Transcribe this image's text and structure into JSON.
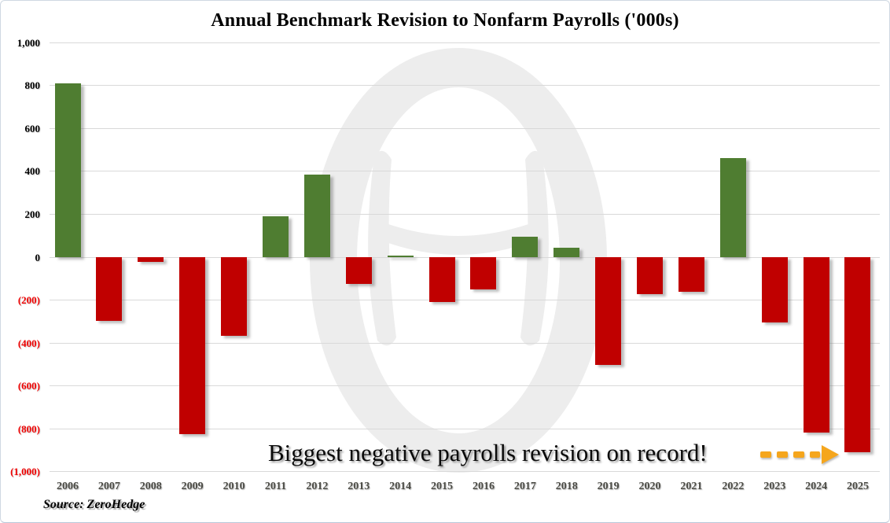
{
  "source": {
    "label": "Source: ZeroHedge"
  },
  "annotation": {
    "text": "Biggest negative payrolls revision on record!"
  },
  "colors": {
    "positive_bar": "#4f7d31",
    "negative_bar": "#c00000",
    "gridline": "#d9d9d9",
    "ytick_positive": "#000000",
    "ytick_negative": "#ef0000",
    "year_label": "#4c4c46",
    "arrow": "#f5a61d",
    "watermark": "#ededed"
  },
  "chart_data": {
    "type": "bar",
    "title": "Annual Benchmark Revision to Nonfarm Payrolls ('000s)",
    "categories": [
      "2006",
      "2007",
      "2008",
      "2009",
      "2010",
      "2011",
      "2012",
      "2013",
      "2014",
      "2015",
      "2016",
      "2017",
      "2018",
      "2019",
      "2020",
      "2021",
      "2022",
      "2023",
      "2024",
      "2025"
    ],
    "values": [
      810,
      -297,
      -21,
      -824,
      -366,
      192,
      386,
      -124,
      7,
      -208,
      -150,
      95,
      43,
      -501,
      -173,
      -161,
      462,
      -306,
      -818,
      -911
    ],
    "xlabel": "",
    "ylabel": "",
    "ylim": [
      -1000,
      1000
    ],
    "ytick_interval": 200,
    "ytick_labels": [
      "1,000",
      "800",
      "600",
      "400",
      "200",
      "0",
      "(200)",
      "(400)",
      "(600)",
      "(800)",
      "(1,000)"
    ],
    "grid": true,
    "legend": false,
    "bar_color_rule": "green if positive, red if negative"
  }
}
